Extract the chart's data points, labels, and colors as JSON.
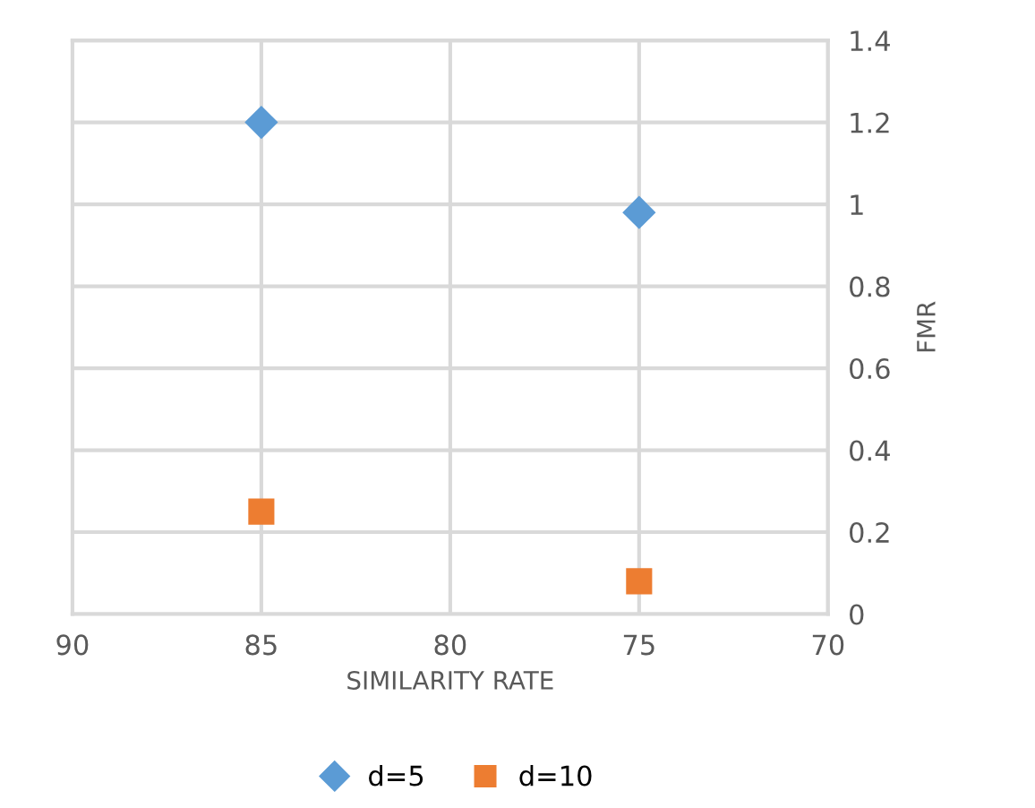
{
  "chart_data": {
    "type": "scatter",
    "xlabel": "SIMILARITY RATE",
    "ylabel": "FMR",
    "x": [
      85,
      75
    ],
    "series": [
      {
        "name": "d=5",
        "color": "#5b9bd5",
        "values": [
          1.2,
          0.98
        ],
        "marker": "diamond"
      },
      {
        "name": "d=10",
        "color": "#ed7d31",
        "values": [
          0.25,
          0.08
        ],
        "marker": "square"
      }
    ],
    "xlim": [
      90,
      70
    ],
    "xticks": [
      90,
      85,
      80,
      75,
      70
    ],
    "ylim": [
      0,
      1.4
    ],
    "yticks": [
      0,
      0.2,
      0.4,
      0.6,
      0.8,
      1,
      1.2,
      1.4
    ],
    "grid": true,
    "legend": "bottom"
  }
}
